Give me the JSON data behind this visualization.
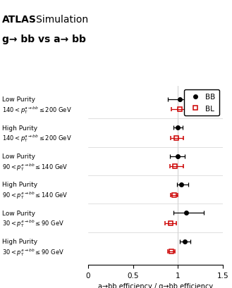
{
  "xlabel": "a→bb efficiency / g→bb efficiency",
  "xlim": [
    0,
    1.5
  ],
  "xticks": [
    0,
    0.5,
    1.0,
    1.5
  ],
  "xticklabels": [
    "0",
    "0.5",
    "1",
    "1.5"
  ],
  "vline_x": 1.0,
  "cat_labels_line1": [
    "Low Purity",
    "High Purity",
    "Low Purity",
    "High Purity",
    "Low Purity",
    "High Purity"
  ],
  "cat_labels_line2": [
    "$140 < p_\\mathrm{T}^{a\\rightarrow bb} \\leq 200$ GeV",
    "$140 < p_\\mathrm{T}^{a\\rightarrow bb} \\leq 200$ GeV",
    "$90 < p_\\mathrm{T}^{a\\rightarrow bb} \\leq 140$ GeV",
    "$90 < p_\\mathrm{T}^{a\\rightarrow bb} \\leq 140$ GeV",
    "$30 < p_\\mathrm{T}^{a\\rightarrow bb} \\leq 90$ GeV",
    "$30 < p_\\mathrm{T}^{a\\rightarrow bb} \\leq 90$ GeV"
  ],
  "BB_values": [
    1.02,
    1.0,
    0.995,
    1.04,
    1.09,
    1.08
  ],
  "BB_xerr_lo": [
    0.13,
    0.05,
    0.08,
    0.05,
    0.14,
    0.06
  ],
  "BB_xerr_hi": [
    0.13,
    0.05,
    0.08,
    0.08,
    0.2,
    0.06
  ],
  "BL_values": [
    1.02,
    0.98,
    0.97,
    0.96,
    0.92,
    0.93
  ],
  "BL_xerr_lo": [
    0.09,
    0.06,
    0.06,
    0.04,
    0.06,
    0.04
  ],
  "BL_xerr_hi": [
    0.09,
    0.08,
    0.09,
    0.04,
    0.06,
    0.04
  ],
  "BB_color": "#000000",
  "BL_color": "#cc0000",
  "legend_BB": "BB",
  "legend_BL": "BL",
  "bg_color": "#ffffff",
  "atlas_text": "ATLAS",
  "sim_text": "   Simulation",
  "title2": "g→ bb vs a→ bb",
  "figsize": [
    3.29,
    4.1
  ],
  "dpi": 100
}
